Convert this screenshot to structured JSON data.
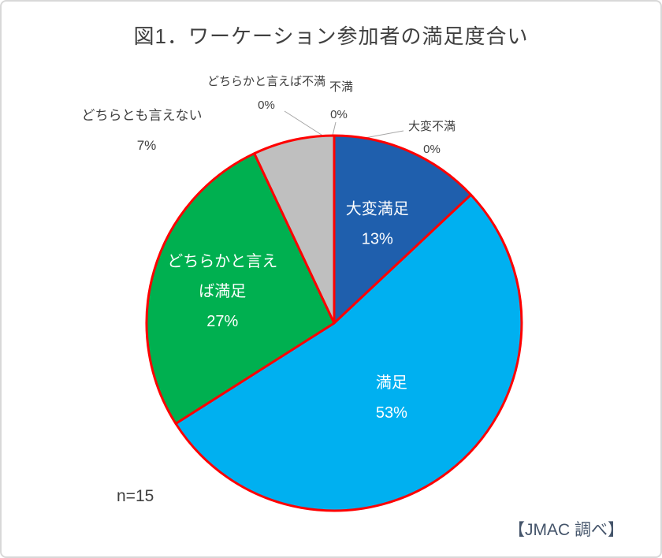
{
  "chart_data": {
    "type": "pie",
    "title": "図1．ワーケーション参加者の満足度合い",
    "sample_label": "n=15",
    "source": "【JMAC 調べ】",
    "outline_color": "#FF0000",
    "leader_line_color": "#A6A6A6",
    "inside_label_color": "#FFFFFF",
    "outside_label_color": "#404040",
    "start_angle_deg": 0,
    "direction": "clockwise",
    "slices": [
      {
        "name": "大変満足",
        "value": 13,
        "percent_label": "13%",
        "color": "#1F5FAD",
        "label_position": "inside",
        "label_lines": [
          "大変満足"
        ]
      },
      {
        "name": "満足",
        "value": 53,
        "percent_label": "53%",
        "color": "#00B0F0",
        "label_position": "inside",
        "label_lines": [
          "満足"
        ]
      },
      {
        "name": "どちらかと言えば満足",
        "value": 27,
        "percent_label": "27%",
        "color": "#00B050",
        "label_position": "inside",
        "label_lines": [
          "どちらかと言え",
          "ば満足"
        ]
      },
      {
        "name": "どちらとも言えない",
        "value": 7,
        "percent_label": "7%",
        "color": "#BFBFBF",
        "label_position": "outside"
      },
      {
        "name": "どちらかと言えば不満",
        "value": 0,
        "percent_label": "0%",
        "label_position": "outside"
      },
      {
        "name": "不満",
        "value": 0,
        "percent_label": "0%",
        "label_position": "outside"
      },
      {
        "name": "大変不満",
        "value": 0,
        "percent_label": "0%",
        "label_position": "outside"
      }
    ]
  }
}
